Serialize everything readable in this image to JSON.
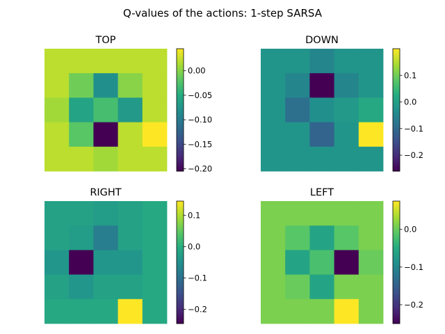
{
  "figure": {
    "suptitle": "Q-values of the actions: 1-step SARSA"
  },
  "chart_data": [
    {
      "type": "heatmap",
      "title": "TOP",
      "colormap": "viridis",
      "clim": [
        -0.205,
        0.045
      ],
      "colorbar_ticks": [
        0.0,
        -0.05,
        -0.1,
        -0.15,
        -0.2
      ],
      "colorbar_tick_labels": [
        "0.00",
        "−0.05",
        "−0.10",
        "−0.15",
        "−0.20"
      ],
      "values": [
        [
          0.02,
          0.02,
          0.02,
          0.02,
          0.02
        ],
        [
          0.02,
          -0.01,
          -0.08,
          0.0,
          0.02
        ],
        [
          0.01,
          -0.06,
          -0.03,
          -0.07,
          0.02
        ],
        [
          0.02,
          -0.02,
          -0.205,
          0.02,
          0.045
        ],
        [
          0.02,
          0.02,
          0.01,
          0.02,
          0.02
        ]
      ]
    },
    {
      "type": "heatmap",
      "title": "DOWN",
      "colormap": "viridis",
      "clim": [
        -0.26,
        0.2
      ],
      "colorbar_ticks": [
        0.1,
        0.0,
        -0.1,
        -0.2
      ],
      "colorbar_tick_labels": [
        "0.1",
        "0.0",
        "−0.1",
        "−0.2"
      ],
      "values": [
        [
          -0.02,
          -0.02,
          -0.05,
          -0.02,
          -0.02
        ],
        [
          -0.02,
          -0.05,
          -0.26,
          -0.05,
          -0.02
        ],
        [
          -0.02,
          -0.09,
          -0.03,
          -0.01,
          0.02
        ],
        [
          -0.02,
          -0.02,
          -0.11,
          -0.02,
          0.2
        ],
        [
          -0.02,
          -0.02,
          -0.02,
          -0.02,
          -0.02
        ]
      ]
    },
    {
      "type": "heatmap",
      "title": "RIGHT",
      "colormap": "viridis",
      "clim": [
        -0.245,
        0.145
      ],
      "colorbar_ticks": [
        0.1,
        0.0,
        -0.1,
        -0.2
      ],
      "colorbar_tick_labels": [
        "0.1",
        "0.0",
        "−0.1",
        "−0.2"
      ],
      "values": [
        [
          -0.02,
          -0.02,
          -0.03,
          -0.02,
          -0.01
        ],
        [
          -0.02,
          -0.03,
          -0.08,
          -0.02,
          -0.01
        ],
        [
          -0.04,
          -0.245,
          -0.04,
          -0.04,
          -0.01
        ],
        [
          -0.02,
          -0.04,
          -0.02,
          -0.02,
          -0.01
        ],
        [
          -0.01,
          -0.01,
          -0.01,
          0.145,
          -0.01
        ]
      ]
    },
    {
      "type": "heatmap",
      "title": "LEFT",
      "colormap": "viridis",
      "clim": [
        -0.25,
        0.075
      ],
      "colorbar_ticks": [
        0.0,
        -0.1,
        -0.2
      ],
      "colorbar_tick_labels": [
        "0.0",
        "−0.1",
        "−0.2"
      ],
      "values": [
        [
          0.01,
          0.01,
          0.01,
          0.01,
          0.01
        ],
        [
          0.01,
          -0.01,
          -0.06,
          -0.01,
          0.01
        ],
        [
          0.01,
          -0.06,
          -0.02,
          -0.25,
          0.0
        ],
        [
          0.01,
          0.0,
          -0.06,
          0.01,
          0.01
        ],
        [
          0.01,
          0.01,
          0.01,
          0.075,
          0.01
        ]
      ]
    }
  ]
}
